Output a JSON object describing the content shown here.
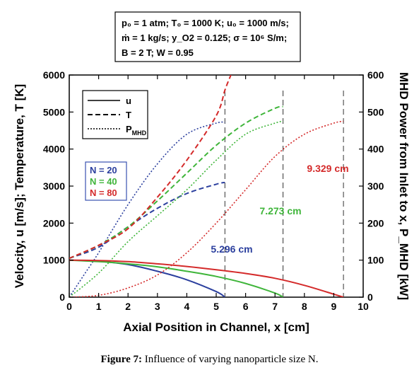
{
  "conditions": [
    "p₀ = 1 atm; T₀ = 1000 K; u₀ = 1000 m/s;",
    "ṁ = 1 kg/s; y_O2 = 0.125; σ = 10⁶ S/m;",
    "B = 2 T; W = 0.95"
  ],
  "caption": {
    "label": "Figure 7:",
    "text": "Influence of varying nanoparticle size N."
  },
  "chart_data": {
    "type": "line",
    "xlabel": "Axial Position in Channel, x [cm]",
    "ylabel_left": "Velocity, u [m/s]; Temperature, T [K]",
    "ylabel_right": "MHD Power from Inlet to x, P_MHD [kW]",
    "xlim": [
      0,
      10
    ],
    "ylim_left": [
      0,
      6000
    ],
    "ylim_right": [
      0,
      600
    ],
    "x_ticks": [
      "0",
      "1",
      "2",
      "3",
      "4",
      "5",
      "6",
      "7",
      "8",
      "9",
      "10"
    ],
    "y_left_ticks": [
      "0",
      "1000",
      "2000",
      "3000",
      "4000",
      "5000",
      "6000"
    ],
    "y_right_ticks": [
      "0",
      "100",
      "200",
      "300",
      "400",
      "500",
      "600"
    ],
    "grid": false,
    "legend_styles": [
      {
        "label": "u",
        "style": "solid"
      },
      {
        "label": "T",
        "style": "dashed"
      },
      {
        "label": "P",
        "sub": "MHD",
        "style": "dotted"
      }
    ],
    "legend_groups": [
      {
        "label": "N = 20",
        "color": "#2b3f9e"
      },
      {
        "label": "N = 40",
        "color": "#3fb53a"
      },
      {
        "label": "N = 80",
        "color": "#d42a2a"
      }
    ],
    "cases": [
      {
        "N": 20,
        "color": "#2b3f9e",
        "channel_end": 5.296,
        "end_label": "5.296 cm",
        "u": {
          "x": [
            0,
            1,
            2,
            3,
            4,
            5,
            5.296
          ],
          "y": [
            1000,
            970,
            880,
            700,
            470,
            150,
            0
          ]
        },
        "T": {
          "x": [
            0,
            1,
            2,
            3,
            4,
            5,
            5.296
          ],
          "y": [
            1050,
            1350,
            1900,
            2400,
            2800,
            3050,
            3100
          ]
        },
        "P": {
          "x": [
            0,
            0.5,
            1,
            2,
            3,
            4,
            5,
            5.296
          ],
          "y": [
            0,
            60,
            120,
            250,
            360,
            440,
            470,
            472
          ]
        }
      },
      {
        "N": 40,
        "color": "#3fb53a",
        "channel_end": 7.273,
        "end_label": "7.273 cm",
        "u": {
          "x": [
            0,
            1,
            2,
            3,
            4,
            5,
            6,
            7,
            7.273
          ],
          "y": [
            1000,
            960,
            900,
            820,
            700,
            560,
            370,
            110,
            0
          ]
        },
        "T": {
          "x": [
            0,
            1,
            2,
            3,
            4,
            5,
            6,
            7,
            7.273
          ],
          "y": [
            1050,
            1400,
            1900,
            2600,
            3350,
            4100,
            4700,
            5100,
            5150
          ]
        },
        "P": {
          "x": [
            0,
            1,
            2,
            3,
            4,
            5,
            6,
            7,
            7.273
          ],
          "y": [
            0,
            65,
            150,
            220,
            290,
            370,
            440,
            470,
            475
          ]
        }
      },
      {
        "N": 80,
        "color": "#d42a2a",
        "channel_end": 9.329,
        "end_label": "9.329 cm",
        "u": {
          "x": [
            0,
            1,
            2,
            3,
            4,
            5,
            6,
            7,
            8,
            9,
            9.329
          ],
          "y": [
            1000,
            990,
            960,
            900,
            830,
            740,
            640,
            510,
            320,
            80,
            0
          ]
        },
        "T": {
          "x": [
            0,
            1,
            2,
            3,
            4,
            5,
            5.3,
            5.5
          ],
          "y": [
            1050,
            1400,
            1850,
            2700,
            3700,
            4900,
            5600,
            6000
          ]
        },
        "P": {
          "x": [
            0,
            1,
            2,
            3,
            4,
            5,
            6,
            7,
            8,
            9,
            9.329
          ],
          "y": [
            0,
            5,
            25,
            60,
            120,
            200,
            290,
            380,
            440,
            470,
            475
          ]
        }
      }
    ]
  }
}
